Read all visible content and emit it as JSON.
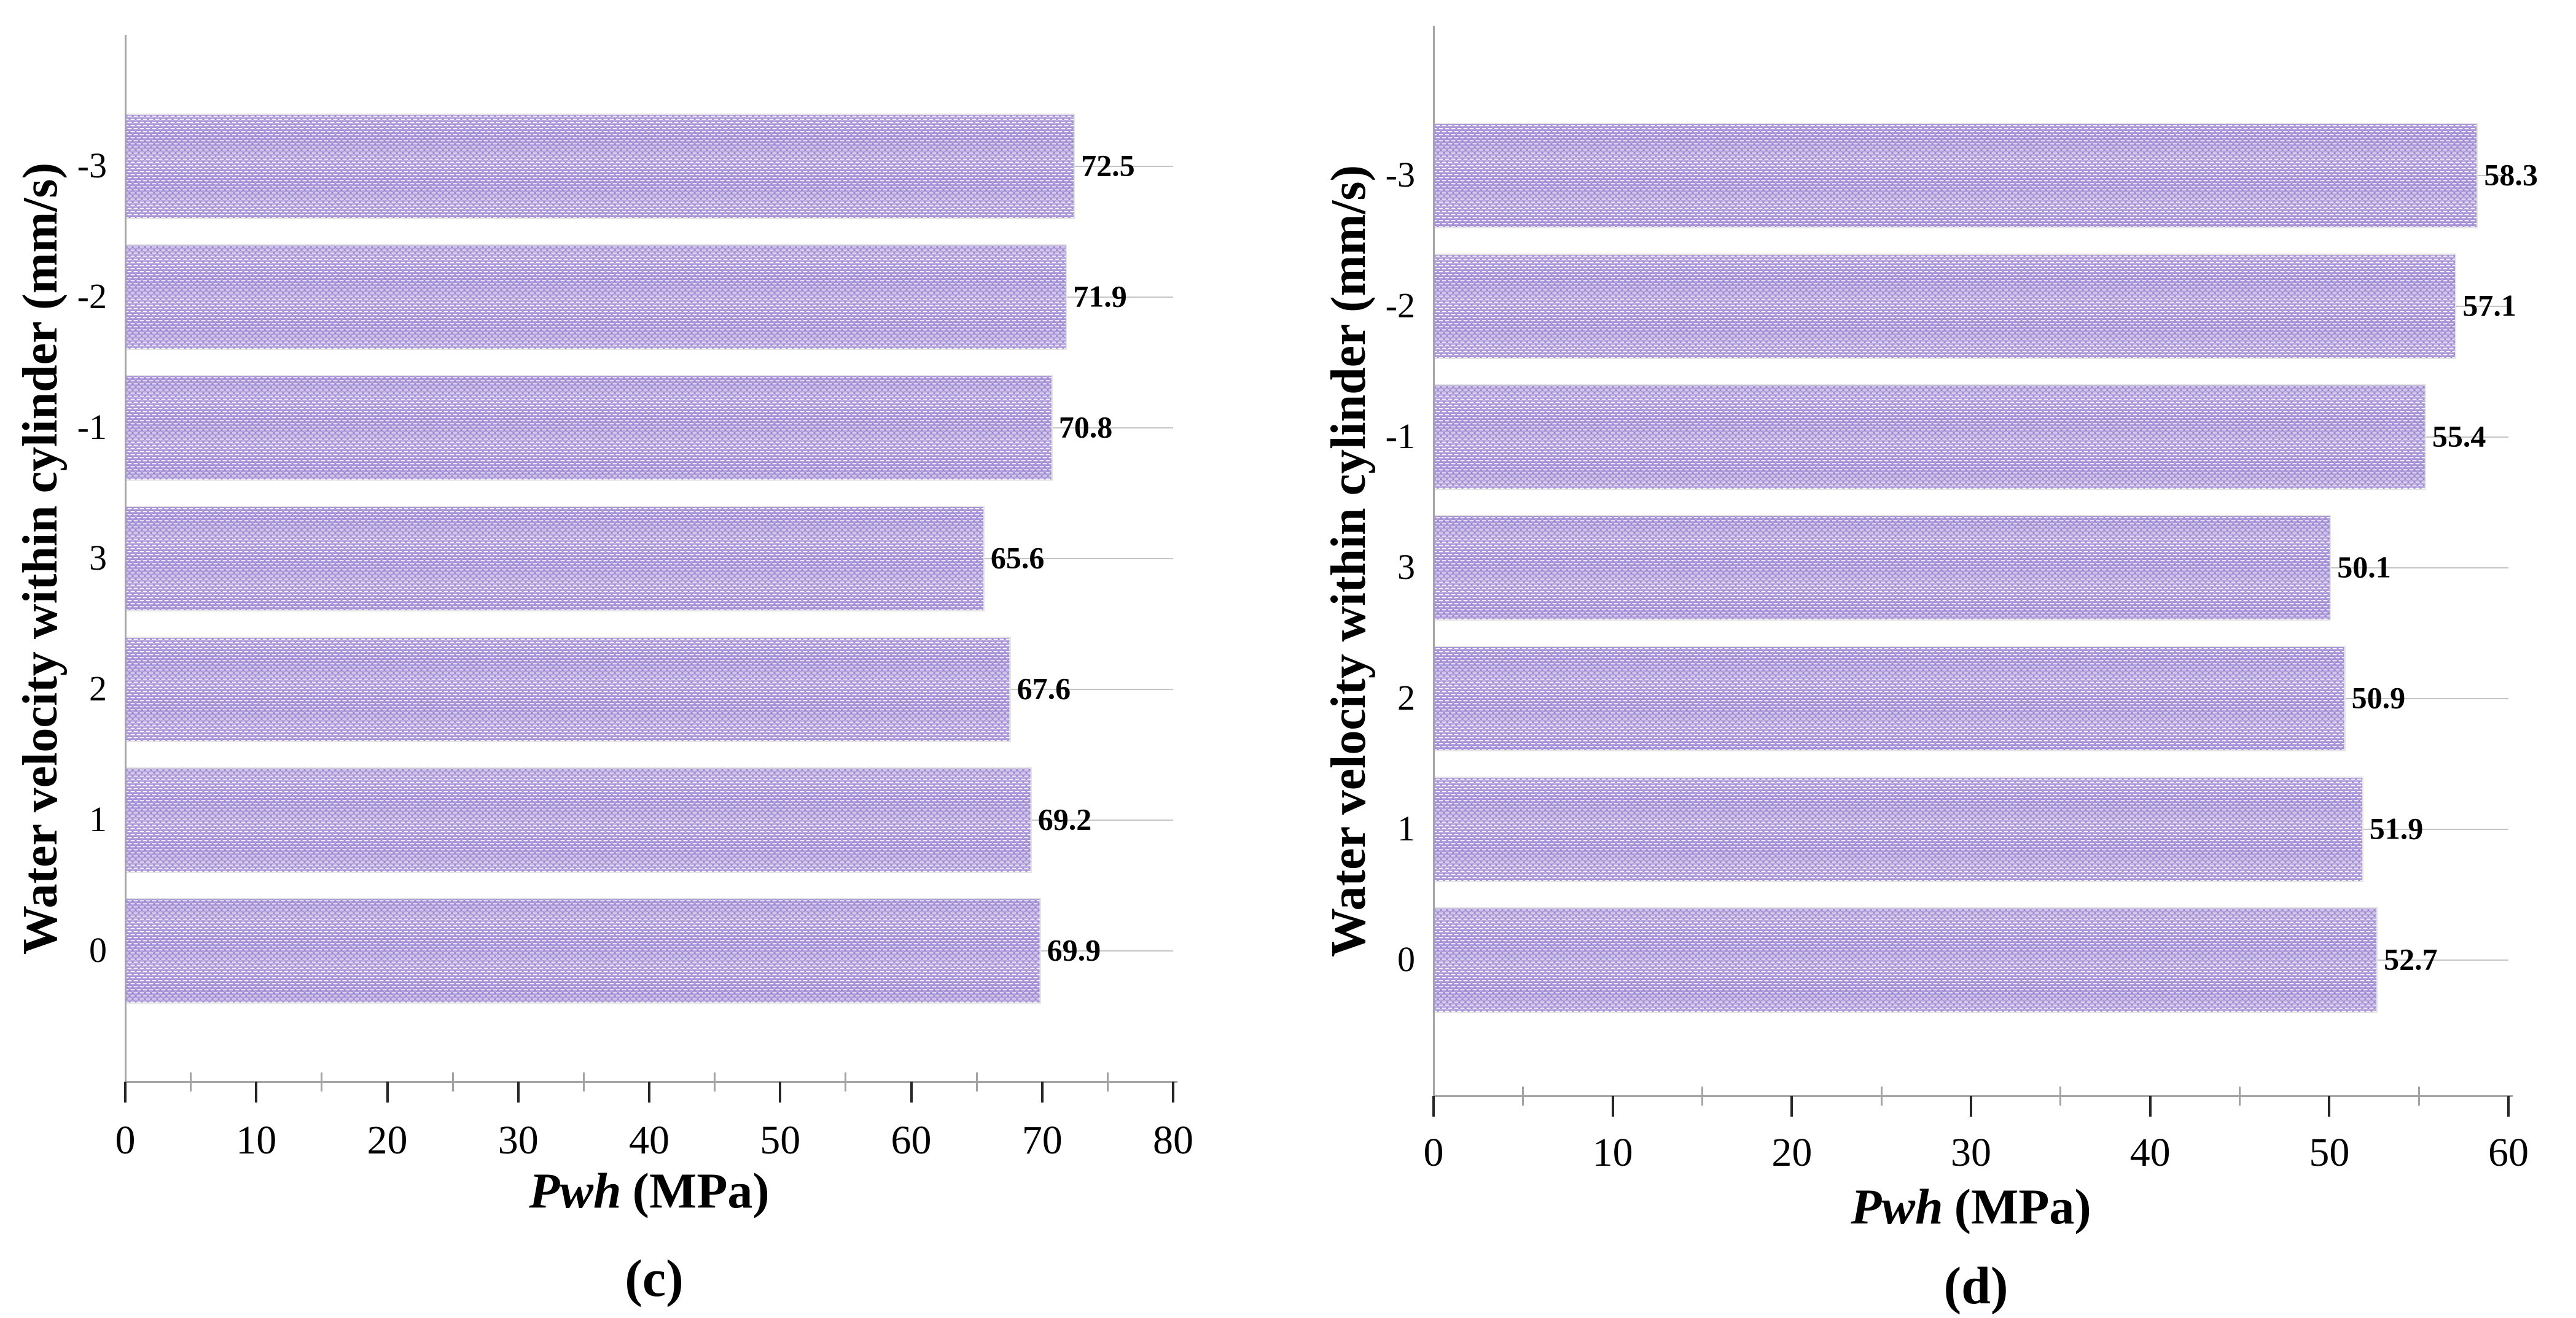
{
  "colors": {
    "bar_pattern_line": "#7E60C6",
    "bar_fill": "#FFFFFF",
    "bar_border": "#E4E4E4",
    "axis_line": "#A6A6A6",
    "major_tick": "#262626",
    "minor_tick": "#A3A3A3",
    "gridline": "#C6C6C6",
    "text": "#000000"
  },
  "chart_data": [
    {
      "type": "bar",
      "orientation": "horizontal",
      "panel_label": "(c)",
      "ylabel": "Water velocity within cylinder (mm/s)",
      "xlabel_italic": "Pwh",
      "xlabel_unit": "(MPa)",
      "categories": [
        "-3",
        "-2",
        "-1",
        "3",
        "2",
        "1",
        "0"
      ],
      "values": [
        72.5,
        71.9,
        70.8,
        65.6,
        67.6,
        69.2,
        69.9
      ],
      "value_labels": [
        "72.5",
        "71.9",
        "70.8",
        "65.6",
        "67.6",
        "69.2",
        "69.9"
      ],
      "xlim": [
        0,
        80
      ],
      "xticks": [
        0,
        10,
        20,
        30,
        40,
        50,
        60,
        70,
        80
      ],
      "minor_tick_step": 5,
      "grid": "horizontal leader line at each bar centre, from bar end to plot right edge",
      "legend": null
    },
    {
      "type": "bar",
      "orientation": "horizontal",
      "panel_label": "(d)",
      "ylabel": "Water velocity within cylinder (mm/s)",
      "xlabel_italic": "Pwh",
      "xlabel_unit": "(MPa)",
      "categories": [
        "-3",
        "-2",
        "-1",
        "3",
        "2",
        "1",
        "0"
      ],
      "values": [
        58.3,
        57.1,
        55.4,
        50.1,
        50.9,
        51.9,
        52.7
      ],
      "value_labels": [
        "58.3",
        "57.1",
        "55.4",
        "50.1",
        "50.9",
        "51.9",
        "52.7"
      ],
      "xlim": [
        0,
        60
      ],
      "xticks": [
        0,
        10,
        20,
        30,
        40,
        50,
        60
      ],
      "minor_tick_step": 5,
      "grid": "horizontal leader line at each bar centre, from bar end to plot right edge",
      "legend": null
    }
  ]
}
